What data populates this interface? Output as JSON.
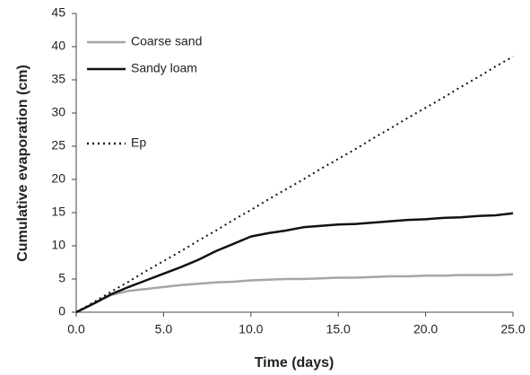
{
  "chart_data": {
    "type": "line",
    "xlabel": "Time (days)",
    "ylabel": "Cumulative evaporation  (cm)",
    "x": [
      0,
      1,
      2,
      3,
      4,
      5,
      6,
      7,
      8,
      9,
      10,
      11,
      12,
      13,
      14,
      15,
      16,
      17,
      18,
      19,
      20,
      21,
      22,
      23,
      24,
      25
    ],
    "series": [
      {
        "name": "Coarse sand",
        "color": "#a6a6a6",
        "dash": "solid",
        "values": [
          0,
          1.3,
          2.6,
          3.2,
          3.5,
          3.8,
          4.1,
          4.3,
          4.5,
          4.6,
          4.8,
          4.9,
          5.0,
          5.0,
          5.1,
          5.2,
          5.2,
          5.3,
          5.4,
          5.4,
          5.5,
          5.5,
          5.6,
          5.6,
          5.6,
          5.7
        ]
      },
      {
        "name": "Sandy loam",
        "color": "#111111",
        "dash": "solid",
        "values": [
          0,
          1.3,
          2.7,
          3.8,
          4.8,
          5.8,
          6.8,
          7.9,
          9.2,
          10.3,
          11.4,
          11.9,
          12.3,
          12.8,
          13.0,
          13.2,
          13.3,
          13.5,
          13.7,
          13.9,
          14.0,
          14.2,
          14.3,
          14.5,
          14.6,
          14.9
        ]
      },
      {
        "name": "Ep",
        "color": "#111111",
        "dash": "dotted",
        "values": [
          0,
          1.5,
          3.1,
          4.6,
          6.2,
          7.7,
          9.2,
          10.8,
          12.3,
          13.9,
          15.4,
          17.0,
          18.5,
          20.0,
          21.6,
          23.1,
          24.6,
          26.2,
          27.7,
          29.3,
          30.8,
          32.3,
          33.9,
          35.4,
          37.0,
          38.5
        ]
      }
    ],
    "xlim": [
      0,
      25
    ],
    "xticks": [
      {
        "value": 0,
        "label": "0.0"
      },
      {
        "value": 5,
        "label": "5.0"
      },
      {
        "value": 10,
        "label": "10.0"
      },
      {
        "value": 15,
        "label": "15.0"
      },
      {
        "value": 20,
        "label": "20.0"
      },
      {
        "value": 25,
        "label": "25.0"
      }
    ],
    "ylim": [
      0,
      45
    ],
    "yticks": [
      0,
      5,
      10,
      15,
      20,
      25,
      30,
      35,
      40,
      45
    ],
    "grid": false
  }
}
